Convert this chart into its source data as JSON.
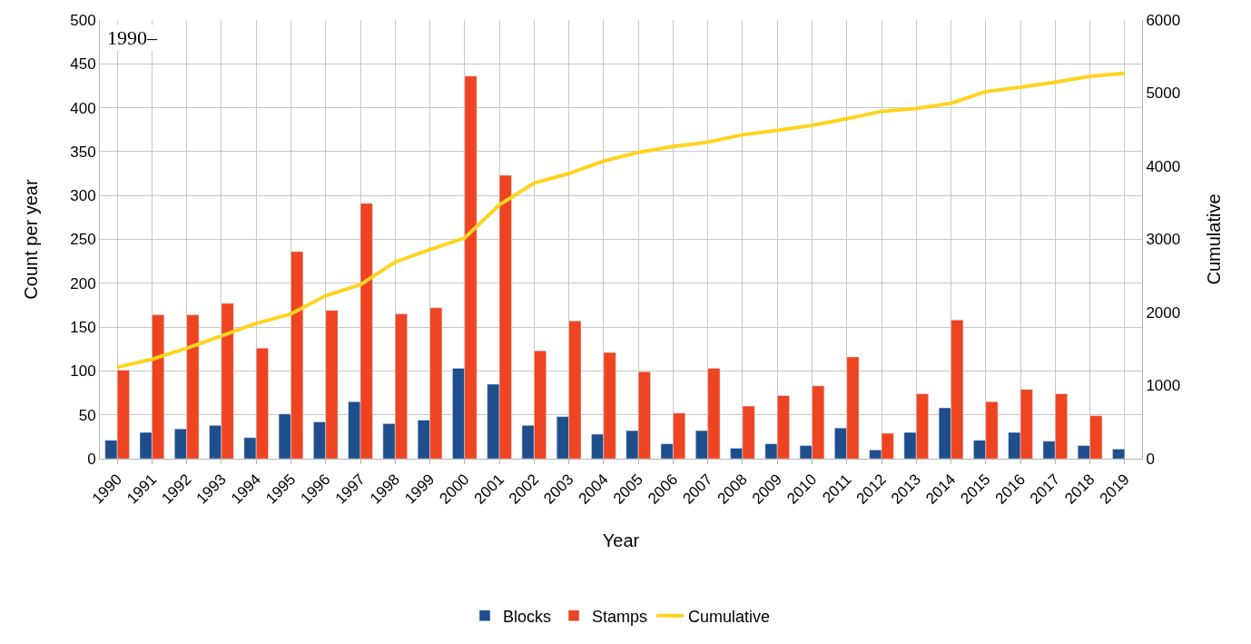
{
  "chart_data": {
    "type": "bar",
    "title": "1990–",
    "xlabel": "Year",
    "ylabel": "Count per year",
    "y2label": "Cumulative",
    "categories": [
      "1990",
      "1991",
      "1992",
      "1993",
      "1994",
      "1995",
      "1996",
      "1997",
      "1998",
      "1999",
      "2000",
      "2001",
      "2002",
      "2003",
      "2004",
      "2005",
      "2006",
      "2007",
      "2008",
      "2009",
      "2010",
      "2011",
      "2012",
      "2013",
      "2014",
      "2015",
      "2016",
      "2017",
      "2018",
      "2019"
    ],
    "series": [
      {
        "name": "Blocks",
        "color": "#1f4e8c",
        "values": [
          21,
          30,
          34,
          38,
          24,
          51,
          42,
          65,
          40,
          44,
          103,
          85,
          38,
          48,
          28,
          32,
          17,
          32,
          12,
          17,
          15,
          35,
          10,
          30,
          58,
          21,
          30,
          20,
          15,
          11
        ]
      },
      {
        "name": "Stamps",
        "color": "#ee4422",
        "values": [
          101,
          164,
          164,
          177,
          126,
          236,
          169,
          291,
          165,
          172,
          436,
          323,
          123,
          157,
          121,
          99,
          52,
          103,
          60,
          72,
          83,
          116,
          29,
          74,
          158,
          65,
          79,
          74,
          49,
          null
        ]
      },
      {
        "name": "Cumulative",
        "type": "line",
        "axis": "y2",
        "color": "#ffd320",
        "values": [
          1250,
          1360,
          1510,
          1680,
          1850,
          1980,
          2230,
          2380,
          2690,
          2860,
          3020,
          3470,
          3770,
          3900,
          4070,
          4190,
          4270,
          4330,
          4430,
          4490,
          4560,
          4650,
          4750,
          4790,
          4860,
          5020,
          5080,
          5150,
          5230,
          5270
        ]
      }
    ],
    "ylim": [
      0,
      500
    ],
    "yticks": [
      0,
      50,
      100,
      150,
      200,
      250,
      300,
      350,
      400,
      450,
      500
    ],
    "y2lim": [
      0,
      6000
    ],
    "y2ticks": [
      0,
      1000,
      2000,
      3000,
      4000,
      5000,
      6000
    ],
    "grid": true,
    "legend": "bottom",
    "marker": "none",
    "line_style": "solid"
  }
}
